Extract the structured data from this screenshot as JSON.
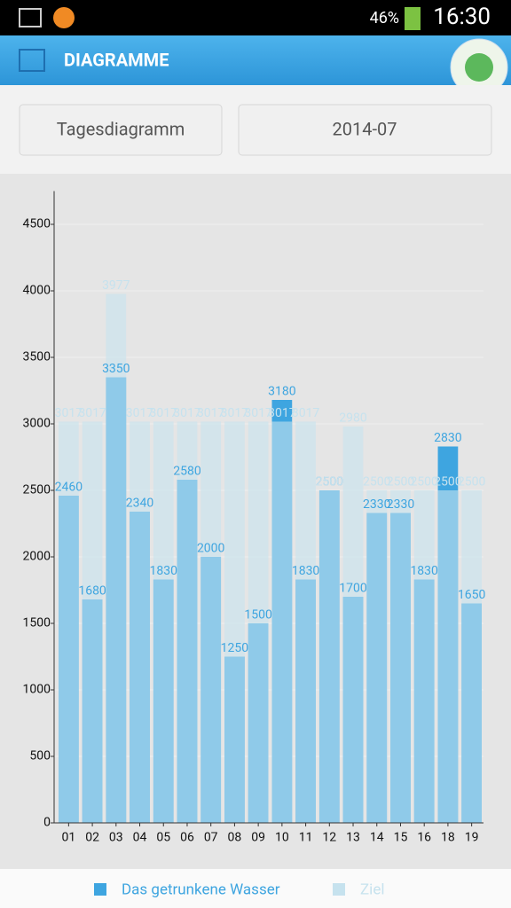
{
  "status_bar": {
    "battery": "46%",
    "time": "16:30"
  },
  "header": {
    "title": "DIAGRAMME"
  },
  "buttons": {
    "mode": "Tagesdiagramm",
    "month": "2014-07"
  },
  "chart_data": {
    "type": "bar",
    "categories": [
      "01",
      "02",
      "03",
      "04",
      "05",
      "06",
      "07",
      "08",
      "09",
      "10",
      "11",
      "12",
      "13",
      "14",
      "15",
      "16",
      "18",
      "19"
    ],
    "series": [
      {
        "name": "Das getrunkene Wasser",
        "color": "#3ea5e0",
        "values": [
          2460,
          1680,
          3350,
          2340,
          1830,
          2580,
          2000,
          1250,
          1500,
          3180,
          1830,
          2500,
          1700,
          2330,
          2330,
          1830,
          2830,
          1650
        ]
      },
      {
        "name": "Ziel",
        "color": "#c6e2ee",
        "values": [
          3017,
          3017,
          3977,
          3017,
          3017,
          3017,
          3017,
          3017,
          3017,
          3017,
          3017,
          2500,
          2980,
          2500,
          2500,
          2500,
          2500,
          2500
        ]
      }
    ],
    "ylim": [
      0,
      4750
    ],
    "yticks": [
      0,
      500,
      1000,
      1500,
      2000,
      2500,
      3000,
      3500,
      4000,
      4500
    ],
    "grid": true
  }
}
